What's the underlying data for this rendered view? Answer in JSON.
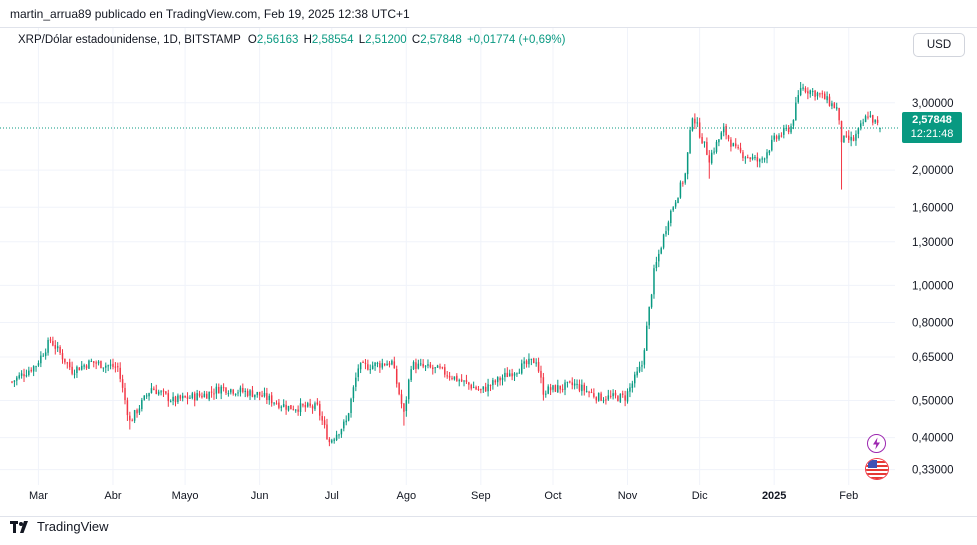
{
  "header": {
    "author_line": "martin_arrua89 publicado en TradingView.com, Feb 19, 2025 12:38 UTC+1"
  },
  "legend": {
    "symbol": "XRP/Dólar estadounidense, 1D, BITSTAMP",
    "o_label": "O",
    "o_value": "2,56163",
    "h_label": "H",
    "h_value": "2,58554",
    "l_label": "L",
    "l_value": "2,51200",
    "c_label": "C",
    "c_value": "2,57848",
    "change": "+0,01774 (+0,69%)"
  },
  "currency_button": "USD",
  "last_price": {
    "value": "2,57848",
    "countdown": "12:21:48"
  },
  "footer": {
    "brand": "TradingView"
  },
  "colors": {
    "up": "#089981",
    "down": "#f23645",
    "accent": "#089981"
  },
  "icons": [
    "lightning-icon",
    "us-flag-icon"
  ],
  "chart_data": {
    "type": "candlestick",
    "scale": "log",
    "price_axis": [
      "3,00000",
      "2,00000",
      "1,60000",
      "1,30000",
      "1,00000",
      "0,80000",
      "0,65000",
      "0,50000",
      "0,40000",
      "0,33000"
    ],
    "time_axis": [
      "Mar",
      "Abr",
      "Mayo",
      "Jun",
      "Jul",
      "Ago",
      "Sep",
      "Oct",
      "Nov",
      "Dic",
      "2025",
      "Feb"
    ],
    "x_range": [
      "2024-02-24",
      "2025-02-19"
    ],
    "y_range": [
      0.31,
      4.0
    ],
    "grid": true,
    "anchors": [
      [
        "2024-02-24",
        0.56
      ],
      [
        "2024-03-05",
        0.62
      ],
      [
        "2024-03-11",
        0.72
      ],
      [
        "2024-03-20",
        0.6
      ],
      [
        "2024-03-28",
        0.63
      ],
      [
        "2024-04-08",
        0.61
      ],
      [
        "2024-04-13",
        0.44
      ],
      [
        "2024-04-22",
        0.54
      ],
      [
        "2024-05-01",
        0.5
      ],
      [
        "2024-05-15",
        0.52
      ],
      [
        "2024-05-21",
        0.54
      ],
      [
        "2024-06-05",
        0.52
      ],
      [
        "2024-06-18",
        0.48
      ],
      [
        "2024-06-30",
        0.48
      ],
      [
        "2024-07-05",
        0.39
      ],
      [
        "2024-07-12",
        0.44
      ],
      [
        "2024-07-17",
        0.61
      ],
      [
        "2024-07-31",
        0.63
      ],
      [
        "2024-08-05",
        0.46
      ],
      [
        "2024-08-08",
        0.62
      ],
      [
        "2024-08-20",
        0.6
      ],
      [
        "2024-09-06",
        0.53
      ],
      [
        "2024-09-18",
        0.59
      ],
      [
        "2024-09-29",
        0.64
      ],
      [
        "2024-10-02",
        0.53
      ],
      [
        "2024-10-15",
        0.55
      ],
      [
        "2024-10-25",
        0.51
      ],
      [
        "2024-11-05",
        0.51
      ],
      [
        "2024-11-12",
        0.62
      ],
      [
        "2024-11-17",
        1.08
      ],
      [
        "2024-11-23",
        1.5
      ],
      [
        "2024-11-30",
        1.95
      ],
      [
        "2024-12-03",
        2.8
      ],
      [
        "2024-12-10",
        2.15
      ],
      [
        "2024-12-16",
        2.55
      ],
      [
        "2024-12-21",
        2.25
      ],
      [
        "2024-12-31",
        2.1
      ],
      [
        "2025-01-06",
        2.4
      ],
      [
        "2025-01-13",
        2.6
      ],
      [
        "2025-01-17",
        3.3
      ],
      [
        "2025-01-25",
        3.15
      ],
      [
        "2025-02-01",
        2.9
      ],
      [
        "2025-02-03",
        2.4
      ],
      [
        "2025-02-08",
        2.4
      ],
      [
        "2025-02-14",
        2.8
      ],
      [
        "2025-02-19",
        2.578
      ]
    ],
    "wicks": [
      [
        "2024-04-13",
        0.42
      ],
      [
        "2024-07-05",
        0.38
      ],
      [
        "2024-08-05",
        0.43
      ],
      [
        "2024-10-02",
        0.5
      ],
      [
        "2024-11-05",
        0.49
      ],
      [
        "2024-12-10",
        1.9
      ],
      [
        "2025-02-03",
        1.78
      ],
      [
        "2025-01-17",
        3.4
      ]
    ],
    "last": {
      "date": "2025-02-19",
      "open": 2.56163,
      "high": 2.58554,
      "low": 2.512,
      "close": 2.57848
    }
  }
}
